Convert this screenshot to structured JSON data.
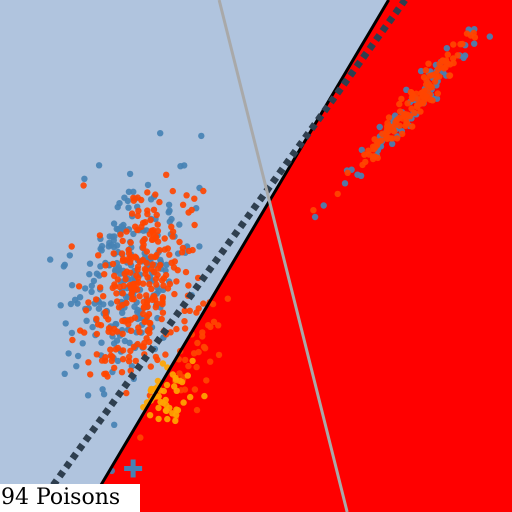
{
  "caption": "94 Poisons",
  "colors": {
    "region_left": "#b0c4de",
    "region_right": "#ff0000",
    "series_blue": "#4682b4",
    "series_orange": "#ff4500",
    "series_gold": "#ffa500",
    "boundary_solid": "#000000",
    "boundary_dotted": "#2f3f4f",
    "reference_line": "#a9a9a9",
    "poison_marker": "#4682b4"
  },
  "chart_data": {
    "type": "scatter",
    "title": "",
    "xlabel": "",
    "ylabel": "",
    "xlim": [
      0,
      100
    ],
    "ylim": [
      0,
      100
    ],
    "axes_visible": false,
    "grid": false,
    "legend": "none",
    "regions": [
      {
        "name": "left-region",
        "color": "#b0c4de"
      },
      {
        "name": "right-region",
        "color": "#ff0000"
      }
    ],
    "lines": [
      {
        "name": "decision-boundary",
        "style": "solid",
        "color": "#000000",
        "points": [
          [
            16.6,
            0
          ],
          [
            75.9,
            100
          ]
        ]
      },
      {
        "name": "poisoned-boundary",
        "style": "dotted",
        "color": "#2f3f4f",
        "points": [
          [
            6.6,
            0
          ],
          [
            79.1,
            100
          ]
        ]
      },
      {
        "name": "reference-line",
        "style": "solid",
        "color": "#a9a9a9",
        "points": [
          [
            42.8,
            100
          ],
          [
            67.8,
            0
          ]
        ]
      }
    ],
    "clusters": [
      {
        "name": "blue-left",
        "color": "#4682b4",
        "count": 240,
        "mean": [
          25,
          45
        ],
        "std": [
          5.5,
          10
        ],
        "corr": 0.45
      },
      {
        "name": "orange-left",
        "color": "#ff4500",
        "count": 260,
        "mean": [
          27,
          44
        ],
        "std": [
          5.0,
          9
        ],
        "corr": 0.45
      },
      {
        "name": "blue-right",
        "color": "#4682b4",
        "count": 80,
        "mean": [
          79,
          78
        ],
        "std": [
          6.5,
          7.5
        ],
        "corr": 0.97
      },
      {
        "name": "orange-right",
        "color": "#ff4500",
        "count": 130,
        "mean": [
          81,
          80
        ],
        "std": [
          6.0,
          7.0
        ],
        "corr": 0.97
      },
      {
        "name": "orange-overlap",
        "color": "#ff4500",
        "count": 40,
        "mean": [
          38,
          32
        ],
        "std": [
          4,
          6
        ],
        "corr": 0.4
      },
      {
        "name": "gold-cluster",
        "color": "#ffa500",
        "count": 45,
        "mean": [
          32,
          22
        ],
        "std": [
          3,
          3.5
        ],
        "corr": 0.3
      }
    ],
    "poison_points": [
      {
        "x": 26,
        "y": 8.5,
        "marker": "plus"
      }
    ]
  }
}
